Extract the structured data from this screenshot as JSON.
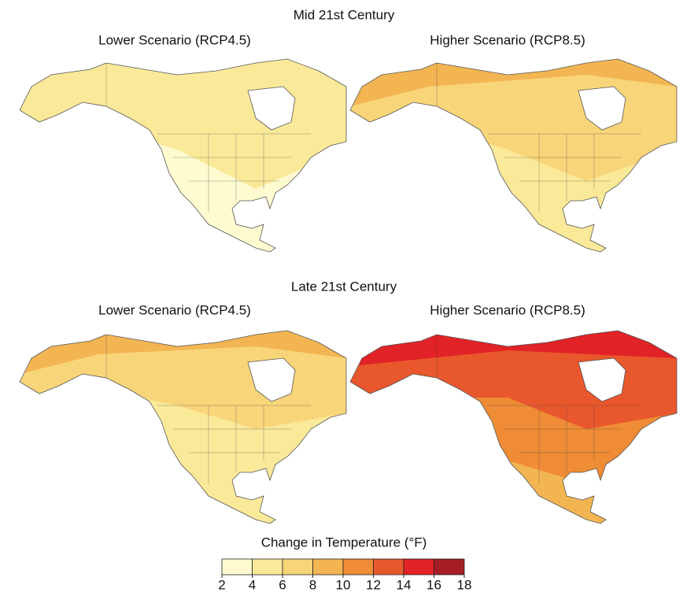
{
  "sections": [
    {
      "title": "Mid 21st Century",
      "panels": [
        {
          "title": "Lower Scenario (RCP4.5)"
        },
        {
          "title": "Higher Scenario (RCP8.5)"
        }
      ]
    },
    {
      "title": "Late 21st Century",
      "panels": [
        {
          "title": "Lower Scenario (RCP4.5)"
        },
        {
          "title": "Higher Scenario (RCP8.5)"
        }
      ]
    }
  ],
  "legend": {
    "title": "Change in Temperature (°F)",
    "ticks": [
      2,
      4,
      6,
      8,
      10,
      12,
      14,
      16,
      18
    ],
    "colors": [
      "#fefbd1",
      "#fbe99a",
      "#f9d57a",
      "#f3b552",
      "#ef8c35",
      "#e9572d",
      "#e12226",
      "#a61e25"
    ]
  }
}
